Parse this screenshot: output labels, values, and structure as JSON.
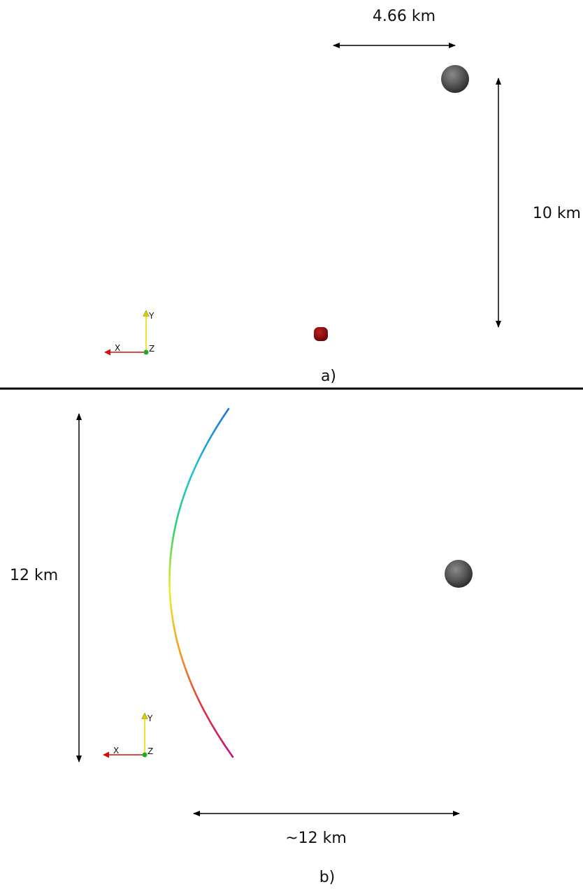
{
  "panel_a": {
    "caption": "a)",
    "distance_horizontal": "4.66 km",
    "distance_vertical": "10 km",
    "axes": {
      "x": "X",
      "y": "Y",
      "z": "Z"
    }
  },
  "panel_b": {
    "caption": "b)",
    "distance_vertical": "12 km",
    "distance_horizontal": "~12 km",
    "axes": {
      "x": "X",
      "y": "Y",
      "z": "Z"
    }
  },
  "colors": {
    "asteroid": "#5a5a5a",
    "red_body": "#8b0f0f",
    "axis_x": "#d01010",
    "axis_y": "#e8e000",
    "axis_z": "#22aa22",
    "divider": "#000000",
    "trajectory_gradient": [
      "#1f6fe0",
      "#21c2d9",
      "#2cd36a",
      "#f2ee2c",
      "#f59a1f",
      "#e23040",
      "#c1127a"
    ]
  }
}
